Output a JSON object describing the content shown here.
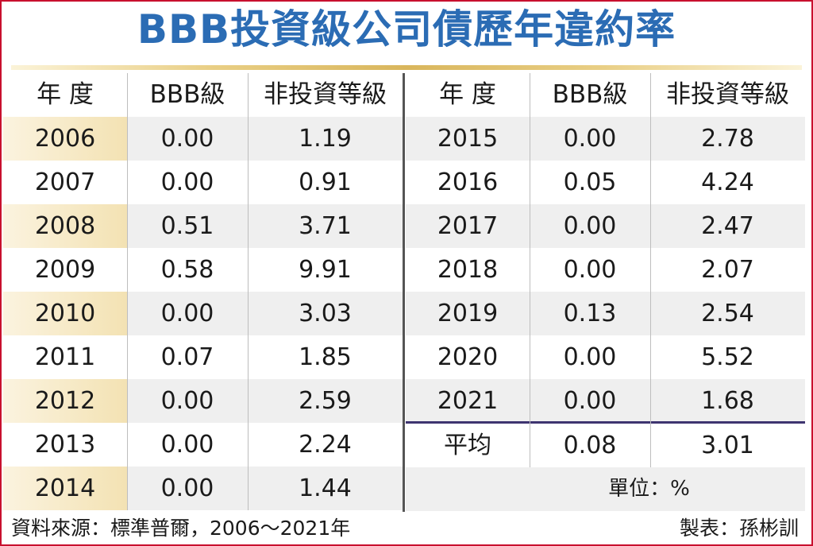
{
  "title": "BBB投資級公司債歷年違約率",
  "chart_data": {
    "type": "table",
    "title": "BBB投資級公司債歷年違約率",
    "columns": [
      "年 度",
      "BBB級",
      "非投資等級"
    ],
    "rows_left": [
      {
        "year": "2006",
        "bbb": "0.00",
        "hy": "1.19"
      },
      {
        "year": "2007",
        "bbb": "0.00",
        "hy": "0.91"
      },
      {
        "year": "2008",
        "bbb": "0.51",
        "hy": "3.71"
      },
      {
        "year": "2009",
        "bbb": "0.58",
        "hy": "9.91"
      },
      {
        "year": "2010",
        "bbb": "0.00",
        "hy": "3.03"
      },
      {
        "year": "2011",
        "bbb": "0.07",
        "hy": "1.85"
      },
      {
        "year": "2012",
        "bbb": "0.00",
        "hy": "2.59"
      },
      {
        "year": "2013",
        "bbb": "0.00",
        "hy": "2.24"
      },
      {
        "year": "2014",
        "bbb": "0.00",
        "hy": "1.44"
      }
    ],
    "rows_right": [
      {
        "year": "2015",
        "bbb": "0.00",
        "hy": "2.78"
      },
      {
        "year": "2016",
        "bbb": "0.05",
        "hy": "4.24"
      },
      {
        "year": "2017",
        "bbb": "0.00",
        "hy": "2.47"
      },
      {
        "year": "2018",
        "bbb": "0.00",
        "hy": "2.07"
      },
      {
        "year": "2019",
        "bbb": "0.13",
        "hy": "2.54"
      },
      {
        "year": "2020",
        "bbb": "0.00",
        "hy": "5.52"
      },
      {
        "year": "2021",
        "bbb": "0.00",
        "hy": "1.68"
      }
    ],
    "average": {
      "label": "平均",
      "bbb": "0.08",
      "hy": "3.01"
    },
    "unit": "單位：%"
  },
  "footer": {
    "source": "資料來源：標準普爾，2006～2021年",
    "credit": "製表：孫彬訓"
  },
  "colors": {
    "title": "#2b6cb4",
    "border": "#c8102e",
    "row_shade": "#efefef",
    "year_highlight": "#f3e2b3",
    "average_rule": "#3e3470"
  }
}
